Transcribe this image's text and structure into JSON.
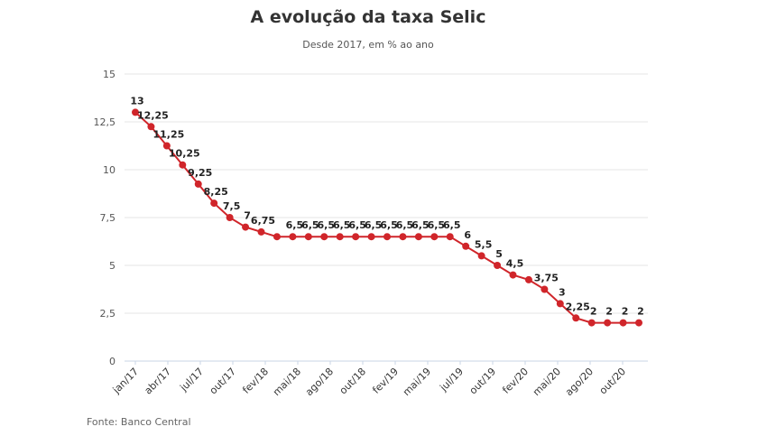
{
  "chart_data": {
    "type": "line",
    "title": "A evolução da taxa Selic",
    "subtitle": "Desde 2017, em % ao ano",
    "source": "Fonte: Banco Central",
    "ylim": [
      0,
      15
    ],
    "yticks": [
      0,
      2.5,
      5,
      7.5,
      10,
      12.5,
      15
    ],
    "ytick_labels": [
      "0",
      "2,5",
      "5",
      "7,5",
      "10",
      "12,5",
      "15"
    ],
    "x_tick_labels": [
      "jan/17",
      "abr/17",
      "jul/17",
      "out/17",
      "fev/18",
      "mai/18",
      "ago/18",
      "out/18",
      "fev/19",
      "mai/19",
      "jul/19",
      "out/19",
      "fev/20",
      "mai/20",
      "ago/20",
      "out/20"
    ],
    "series": [
      {
        "color": "#d0252a",
        "values": [
          13,
          12.25,
          11.25,
          10.25,
          9.25,
          8.25,
          7.5,
          7,
          6.75,
          6.5,
          6.5,
          6.5,
          6.5,
          6.5,
          6.5,
          6.5,
          6.5,
          6.5,
          6.5,
          6.5,
          6.5,
          6,
          5.5,
          5,
          4.5,
          4.25,
          3.75,
          3,
          2.25,
          2,
          2,
          2,
          2
        ],
        "data_labels": [
          "13",
          "12,25",
          "11,25",
          "10,25",
          "9,25",
          "8,25",
          "7,5",
          "7",
          "6,75",
          "",
          "6,5",
          "6,5",
          "6,5",
          "6,5",
          "6,5",
          "6,5",
          "6,5",
          "6,5",
          "6,5",
          "6,5",
          "6,5",
          "6",
          "5,5",
          "5",
          "4,5",
          "",
          "3,75",
          "3",
          "2,25",
          "2",
          "2",
          "2",
          "2"
        ]
      }
    ],
    "grid": true
  }
}
